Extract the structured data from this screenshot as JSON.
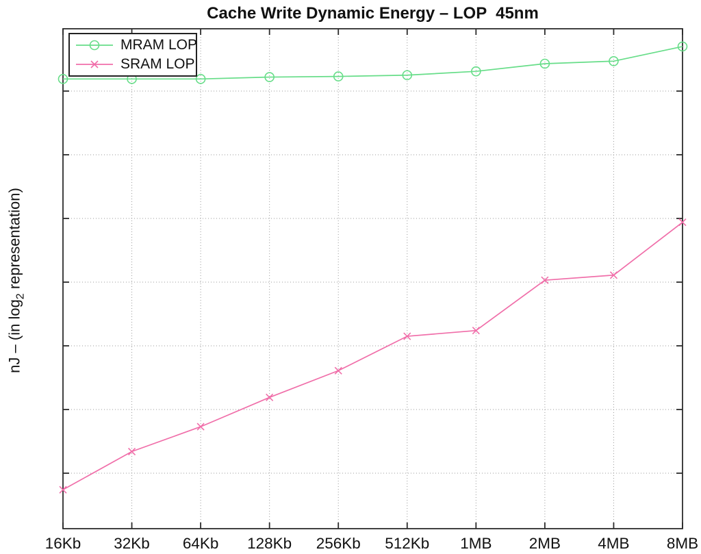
{
  "title": "Cache Write Dynamic Energy – LOP  45nm",
  "y_axis_label": {
    "prefix": "nJ – (in log",
    "subscript": "2",
    "suffix": " representation)"
  },
  "legend": {
    "entries": [
      {
        "label": "MRAM LOP",
        "color": "#66dd88",
        "marker": "circle"
      },
      {
        "label": "SRAM LOP",
        "color": "#f06ea9",
        "marker": "x"
      }
    ]
  },
  "colors": {
    "mram": "#66dd88",
    "sram": "#f06ea9",
    "axis": "#2b2b2b",
    "gridline": "#999999",
    "text": "#111111"
  },
  "chart_data": {
    "type": "line",
    "title": "Cache Write Dynamic Energy – LOP  45nm",
    "xlabel": "",
    "ylabel": "nJ – (in log2 representation)",
    "categories": [
      "16Kb",
      "32Kb",
      "64Kb",
      "128Kb",
      "256Kb",
      "512Kb",
      "1MB",
      "2MB",
      "4MB",
      "8MB"
    ],
    "series": [
      {
        "name": "MRAM LOP",
        "marker": "circle",
        "color": "#66dd88",
        "values": [
          6.19,
          6.19,
          6.19,
          6.22,
          6.23,
          6.25,
          6.31,
          6.43,
          6.47,
          6.7
        ]
      },
      {
        "name": "SRAM LOP",
        "marker": "x",
        "color": "#f06ea9",
        "values": [
          -0.26,
          0.34,
          0.73,
          1.19,
          1.61,
          2.15,
          2.24,
          3.03,
          3.11,
          3.94
        ]
      }
    ],
    "y_axis": {
      "tick_labels_visible": false,
      "note": "y axis has unlabeled ticks; values expressed in gridline units (bottom gridline = 0, one unit per gridline, log2 representation)",
      "gridline_values": [
        0,
        1,
        2,
        3,
        4,
        5,
        6
      ],
      "ylim": [
        -0.87,
        6.98
      ]
    },
    "grid": true,
    "legend_position": "top-left"
  }
}
